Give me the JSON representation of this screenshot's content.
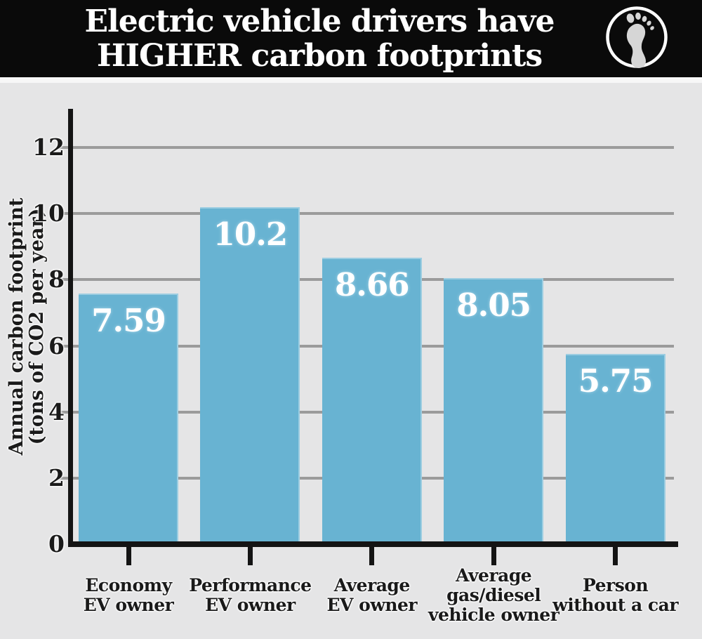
{
  "header": {
    "title_line1": "Electric vehicle drivers have",
    "title_line2": "HIGHER carbon footprints",
    "icon": "footprint-icon"
  },
  "chart_data": {
    "type": "bar",
    "title": "Electric vehicle drivers have HIGHER carbon footprints",
    "categories": [
      [
        "Economy",
        "EV owner"
      ],
      [
        "Performance",
        "EV owner"
      ],
      [
        "Average",
        "EV owner"
      ],
      [
        "Average",
        "gas/diesel",
        "vehicle owner"
      ],
      [
        "Person",
        "without a car"
      ]
    ],
    "values": [
      7.59,
      10.2,
      8.66,
      8.05,
      5.75
    ],
    "value_labels": [
      "7.59",
      "10.2",
      "8.66",
      "8.05",
      "5.75"
    ],
    "ylabel_line1": "Annual carbon footprint",
    "ylabel_line2": "(tons of CO2 per year)",
    "xlabel": "",
    "yticks": [
      0,
      2,
      4,
      6,
      8,
      10,
      12
    ],
    "ylim": [
      0,
      12
    ],
    "grid": true,
    "legend": "none",
    "colors": {
      "bar": "#68b3d2",
      "bar_value_text": "#ffffff",
      "gridline": "#9b9b9b",
      "axis": "#141414",
      "plot_background": "#e5e5e6",
      "header_background": "#0a0a0a",
      "header_text": "#ffffff",
      "label_text": "#1a1a1a"
    }
  }
}
